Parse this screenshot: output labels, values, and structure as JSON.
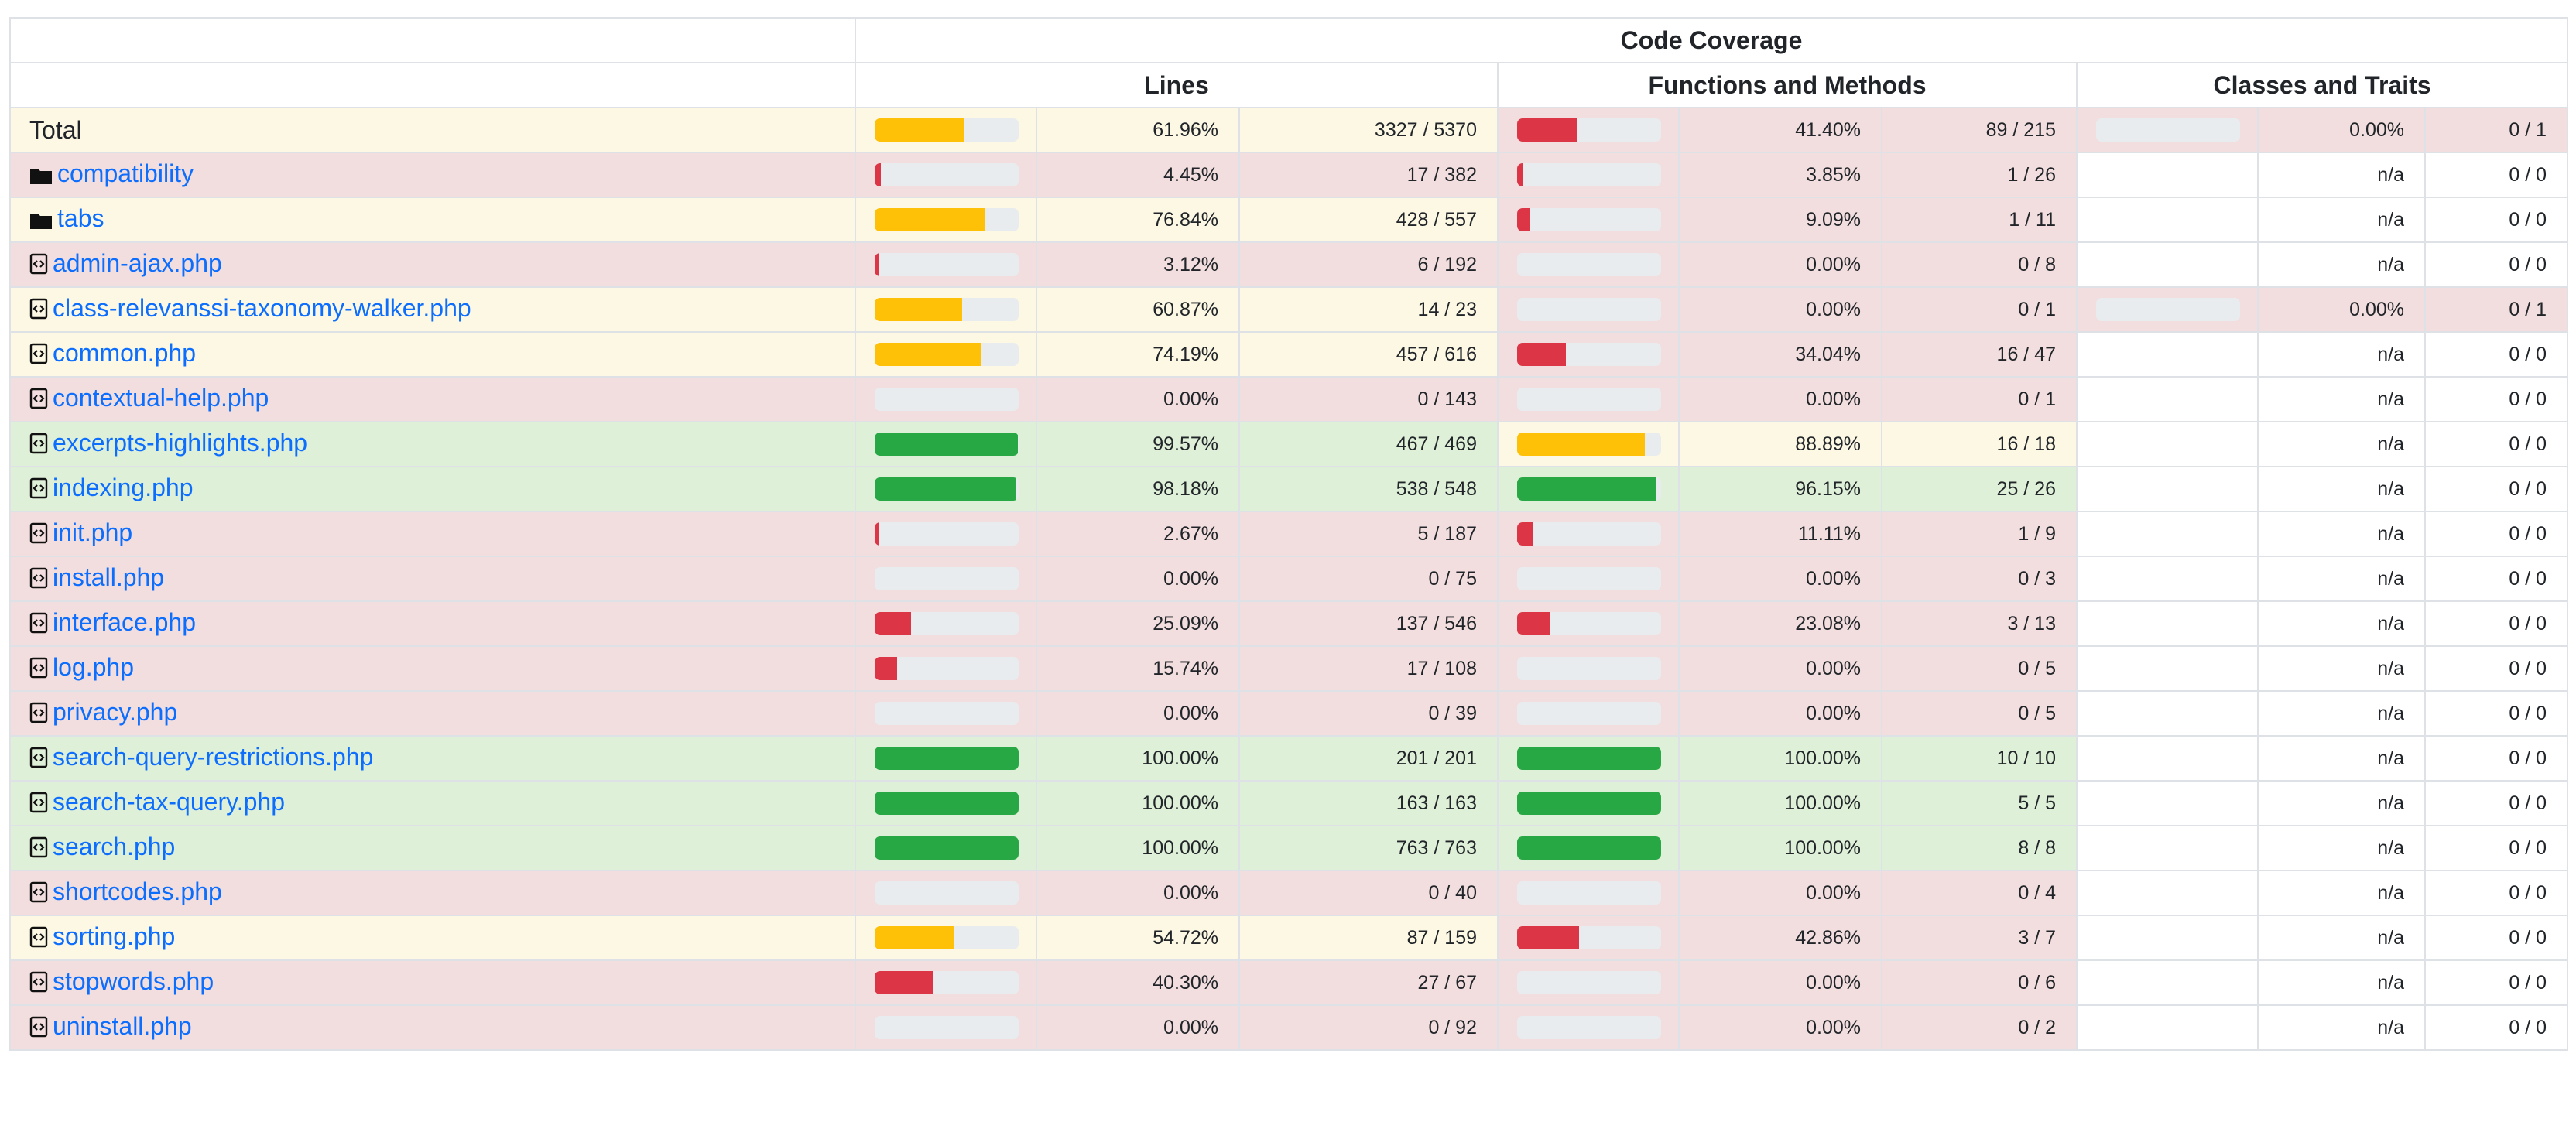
{
  "headers": {
    "code_coverage": "Code Coverage",
    "lines": "Lines",
    "functions": "Functions and Methods",
    "classes": "Classes and Traits"
  },
  "colors": {
    "success_row": "#dff0d8",
    "warning_row": "#fcf8e3",
    "danger_row": "#f2dede",
    "success_bar": "#28a745",
    "warning_bar": "#ffc107",
    "danger_bar": "#dc3545",
    "bar_track": "#e9ecef",
    "link": "#0d6efd"
  },
  "rows": [
    {
      "name": "Total",
      "kind": "total",
      "icon": "",
      "lines": {
        "pct": "61.96%",
        "frac": "3327 / 5370",
        "value": 61.96,
        "level": "warning"
      },
      "functions": {
        "pct": "41.40%",
        "frac": "89 / 215",
        "value": 41.4,
        "level": "danger"
      },
      "classes": {
        "pct": "0.00%",
        "frac": "0 / 1",
        "value": 0,
        "level": "danger",
        "bar": true
      }
    },
    {
      "name": "compatibility",
      "kind": "dir",
      "icon": "folder-icon",
      "lines": {
        "pct": "4.45%",
        "frac": "17 / 382",
        "value": 4.45,
        "level": "danger"
      },
      "functions": {
        "pct": "3.85%",
        "frac": "1 / 26",
        "value": 3.85,
        "level": "danger"
      },
      "classes": {
        "pct": "n/a",
        "frac": "0 / 0",
        "value": 0,
        "level": "plain",
        "bar": false
      }
    },
    {
      "name": "tabs",
      "kind": "dir",
      "icon": "folder-icon",
      "lines": {
        "pct": "76.84%",
        "frac": "428 / 557",
        "value": 76.84,
        "level": "warning"
      },
      "functions": {
        "pct": "9.09%",
        "frac": "1 / 11",
        "value": 9.09,
        "level": "danger"
      },
      "classes": {
        "pct": "n/a",
        "frac": "0 / 0",
        "value": 0,
        "level": "plain",
        "bar": false
      }
    },
    {
      "name": "admin-ajax.php",
      "kind": "file",
      "icon": "code-file-icon",
      "lines": {
        "pct": "3.12%",
        "frac": "6 / 192",
        "value": 3.12,
        "level": "danger"
      },
      "functions": {
        "pct": "0.00%",
        "frac": "0 / 8",
        "value": 0,
        "level": "danger"
      },
      "classes": {
        "pct": "n/a",
        "frac": "0 / 0",
        "value": 0,
        "level": "plain",
        "bar": false
      }
    },
    {
      "name": "class-relevanssi-taxonomy-walker.php",
      "kind": "file",
      "icon": "code-file-icon",
      "lines": {
        "pct": "60.87%",
        "frac": "14 / 23",
        "value": 60.87,
        "level": "warning"
      },
      "functions": {
        "pct": "0.00%",
        "frac": "0 / 1",
        "value": 0,
        "level": "danger"
      },
      "classes": {
        "pct": "0.00%",
        "frac": "0 / 1",
        "value": 0,
        "level": "danger",
        "bar": true
      }
    },
    {
      "name": "common.php",
      "kind": "file",
      "icon": "code-file-icon",
      "lines": {
        "pct": "74.19%",
        "frac": "457 / 616",
        "value": 74.19,
        "level": "warning"
      },
      "functions": {
        "pct": "34.04%",
        "frac": "16 / 47",
        "value": 34.04,
        "level": "danger"
      },
      "classes": {
        "pct": "n/a",
        "frac": "0 / 0",
        "value": 0,
        "level": "plain",
        "bar": false
      }
    },
    {
      "name": "contextual-help.php",
      "kind": "file",
      "icon": "code-file-icon",
      "lines": {
        "pct": "0.00%",
        "frac": "0 / 143",
        "value": 0,
        "level": "danger"
      },
      "functions": {
        "pct": "0.00%",
        "frac": "0 / 1",
        "value": 0,
        "level": "danger"
      },
      "classes": {
        "pct": "n/a",
        "frac": "0 / 0",
        "value": 0,
        "level": "plain",
        "bar": false
      }
    },
    {
      "name": "excerpts-highlights.php",
      "kind": "file",
      "icon": "code-file-icon",
      "lines": {
        "pct": "99.57%",
        "frac": "467 / 469",
        "value": 99.57,
        "level": "success"
      },
      "functions": {
        "pct": "88.89%",
        "frac": "16 / 18",
        "value": 88.89,
        "level": "warning"
      },
      "classes": {
        "pct": "n/a",
        "frac": "0 / 0",
        "value": 0,
        "level": "plain",
        "bar": false
      }
    },
    {
      "name": "indexing.php",
      "kind": "file",
      "icon": "code-file-icon",
      "lines": {
        "pct": "98.18%",
        "frac": "538 / 548",
        "value": 98.18,
        "level": "success"
      },
      "functions": {
        "pct": "96.15%",
        "frac": "25 / 26",
        "value": 96.15,
        "level": "success"
      },
      "classes": {
        "pct": "n/a",
        "frac": "0 / 0",
        "value": 0,
        "level": "plain",
        "bar": false
      }
    },
    {
      "name": "init.php",
      "kind": "file",
      "icon": "code-file-icon",
      "lines": {
        "pct": "2.67%",
        "frac": "5 / 187",
        "value": 2.67,
        "level": "danger"
      },
      "functions": {
        "pct": "11.11%",
        "frac": "1 / 9",
        "value": 11.11,
        "level": "danger"
      },
      "classes": {
        "pct": "n/a",
        "frac": "0 / 0",
        "value": 0,
        "level": "plain",
        "bar": false
      }
    },
    {
      "name": "install.php",
      "kind": "file",
      "icon": "code-file-icon",
      "lines": {
        "pct": "0.00%",
        "frac": "0 / 75",
        "value": 0,
        "level": "danger"
      },
      "functions": {
        "pct": "0.00%",
        "frac": "0 / 3",
        "value": 0,
        "level": "danger"
      },
      "classes": {
        "pct": "n/a",
        "frac": "0 / 0",
        "value": 0,
        "level": "plain",
        "bar": false
      }
    },
    {
      "name": "interface.php",
      "kind": "file",
      "icon": "code-file-icon",
      "lines": {
        "pct": "25.09%",
        "frac": "137 / 546",
        "value": 25.09,
        "level": "danger"
      },
      "functions": {
        "pct": "23.08%",
        "frac": "3 / 13",
        "value": 23.08,
        "level": "danger"
      },
      "classes": {
        "pct": "n/a",
        "frac": "0 / 0",
        "value": 0,
        "level": "plain",
        "bar": false
      }
    },
    {
      "name": "log.php",
      "kind": "file",
      "icon": "code-file-icon",
      "lines": {
        "pct": "15.74%",
        "frac": "17 / 108",
        "value": 15.74,
        "level": "danger"
      },
      "functions": {
        "pct": "0.00%",
        "frac": "0 / 5",
        "value": 0,
        "level": "danger"
      },
      "classes": {
        "pct": "n/a",
        "frac": "0 / 0",
        "value": 0,
        "level": "plain",
        "bar": false
      }
    },
    {
      "name": "privacy.php",
      "kind": "file",
      "icon": "code-file-icon",
      "lines": {
        "pct": "0.00%",
        "frac": "0 / 39",
        "value": 0,
        "level": "danger"
      },
      "functions": {
        "pct": "0.00%",
        "frac": "0 / 5",
        "value": 0,
        "level": "danger"
      },
      "classes": {
        "pct": "n/a",
        "frac": "0 / 0",
        "value": 0,
        "level": "plain",
        "bar": false
      }
    },
    {
      "name": "search-query-restrictions.php",
      "kind": "file",
      "icon": "code-file-icon",
      "lines": {
        "pct": "100.00%",
        "frac": "201 / 201",
        "value": 100,
        "level": "success"
      },
      "functions": {
        "pct": "100.00%",
        "frac": "10 / 10",
        "value": 100,
        "level": "success"
      },
      "classes": {
        "pct": "n/a",
        "frac": "0 / 0",
        "value": 0,
        "level": "plain",
        "bar": false
      }
    },
    {
      "name": "search-tax-query.php",
      "kind": "file",
      "icon": "code-file-icon",
      "lines": {
        "pct": "100.00%",
        "frac": "163 / 163",
        "value": 100,
        "level": "success"
      },
      "functions": {
        "pct": "100.00%",
        "frac": "5 / 5",
        "value": 100,
        "level": "success"
      },
      "classes": {
        "pct": "n/a",
        "frac": "0 / 0",
        "value": 0,
        "level": "plain",
        "bar": false
      }
    },
    {
      "name": "search.php",
      "kind": "file",
      "icon": "code-file-icon",
      "lines": {
        "pct": "100.00%",
        "frac": "763 / 763",
        "value": 100,
        "level": "success"
      },
      "functions": {
        "pct": "100.00%",
        "frac": "8 / 8",
        "value": 100,
        "level": "success"
      },
      "classes": {
        "pct": "n/a",
        "frac": "0 / 0",
        "value": 0,
        "level": "plain",
        "bar": false
      }
    },
    {
      "name": "shortcodes.php",
      "kind": "file",
      "icon": "code-file-icon",
      "lines": {
        "pct": "0.00%",
        "frac": "0 / 40",
        "value": 0,
        "level": "danger"
      },
      "functions": {
        "pct": "0.00%",
        "frac": "0 / 4",
        "value": 0,
        "level": "danger"
      },
      "classes": {
        "pct": "n/a",
        "frac": "0 / 0",
        "value": 0,
        "level": "plain",
        "bar": false
      }
    },
    {
      "name": "sorting.php",
      "kind": "file",
      "icon": "code-file-icon",
      "lines": {
        "pct": "54.72%",
        "frac": "87 / 159",
        "value": 54.72,
        "level": "warning"
      },
      "functions": {
        "pct": "42.86%",
        "frac": "3 / 7",
        "value": 42.86,
        "level": "danger"
      },
      "classes": {
        "pct": "n/a",
        "frac": "0 / 0",
        "value": 0,
        "level": "plain",
        "bar": false
      }
    },
    {
      "name": "stopwords.php",
      "kind": "file",
      "icon": "code-file-icon",
      "lines": {
        "pct": "40.30%",
        "frac": "27 / 67",
        "value": 40.3,
        "level": "danger"
      },
      "functions": {
        "pct": "0.00%",
        "frac": "0 / 6",
        "value": 0,
        "level": "danger"
      },
      "classes": {
        "pct": "n/a",
        "frac": "0 / 0",
        "value": 0,
        "level": "plain",
        "bar": false
      }
    },
    {
      "name": "uninstall.php",
      "kind": "file",
      "icon": "code-file-icon",
      "lines": {
        "pct": "0.00%",
        "frac": "0 / 92",
        "value": 0,
        "level": "danger"
      },
      "functions": {
        "pct": "0.00%",
        "frac": "0 / 2",
        "value": 0,
        "level": "danger"
      },
      "classes": {
        "pct": "n/a",
        "frac": "0 / 0",
        "value": 0,
        "level": "plain",
        "bar": false
      }
    }
  ]
}
